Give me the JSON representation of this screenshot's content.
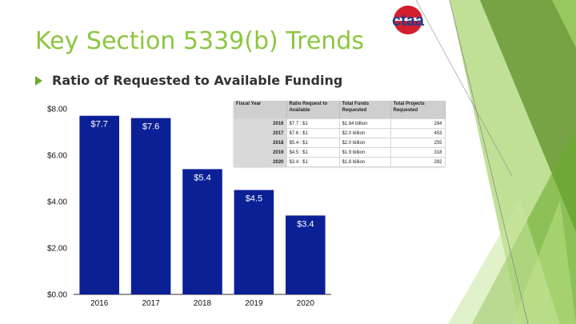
{
  "slide": {
    "title": "Key Section 5339(b) Trends",
    "bullet": "Ratio of Requested to Available Funding",
    "logo_text": "ctaa"
  },
  "colors": {
    "title_green": "#8cc63f",
    "bar_blue": "#0c2096",
    "logo_blue": "#1f3d8c",
    "logo_red": "#d21f2e"
  },
  "chart_data": {
    "type": "bar",
    "categories": [
      "2016",
      "2017",
      "2018",
      "2019",
      "2020"
    ],
    "values": [
      7.7,
      7.6,
      5.4,
      4.5,
      3.4
    ],
    "value_labels": [
      "$7.7",
      "$7.6",
      "$5.4",
      "$4.5",
      "$3.4"
    ],
    "y_ticks": [
      0,
      2,
      4,
      6,
      8
    ],
    "y_tick_labels": [
      "$0.00",
      "$2.00",
      "$4.00",
      "$6.00",
      "$8.00"
    ],
    "ylim": [
      0,
      8
    ],
    "title": "",
    "xlabel": "",
    "ylabel": "",
    "grid": false
  },
  "table": {
    "headers": [
      "Fiscal Year",
      "Ratio Request to Available",
      "Total Funds Requested",
      "Total Projects Requested"
    ],
    "rows": [
      [
        "2016",
        "$7.7 : $1",
        "$1.64 billion",
        "284"
      ],
      [
        "2017",
        "$7.6 : $1",
        "$2.0 billion",
        "453"
      ],
      [
        "2018",
        "$5.4 : $1",
        "$2.0 billion",
        "255"
      ],
      [
        "2019",
        "$4.5 : $1",
        "$1.9 billion",
        "318"
      ],
      [
        "2020",
        "$3.4 : $1",
        "$1.8 billion",
        "282"
      ]
    ]
  }
}
